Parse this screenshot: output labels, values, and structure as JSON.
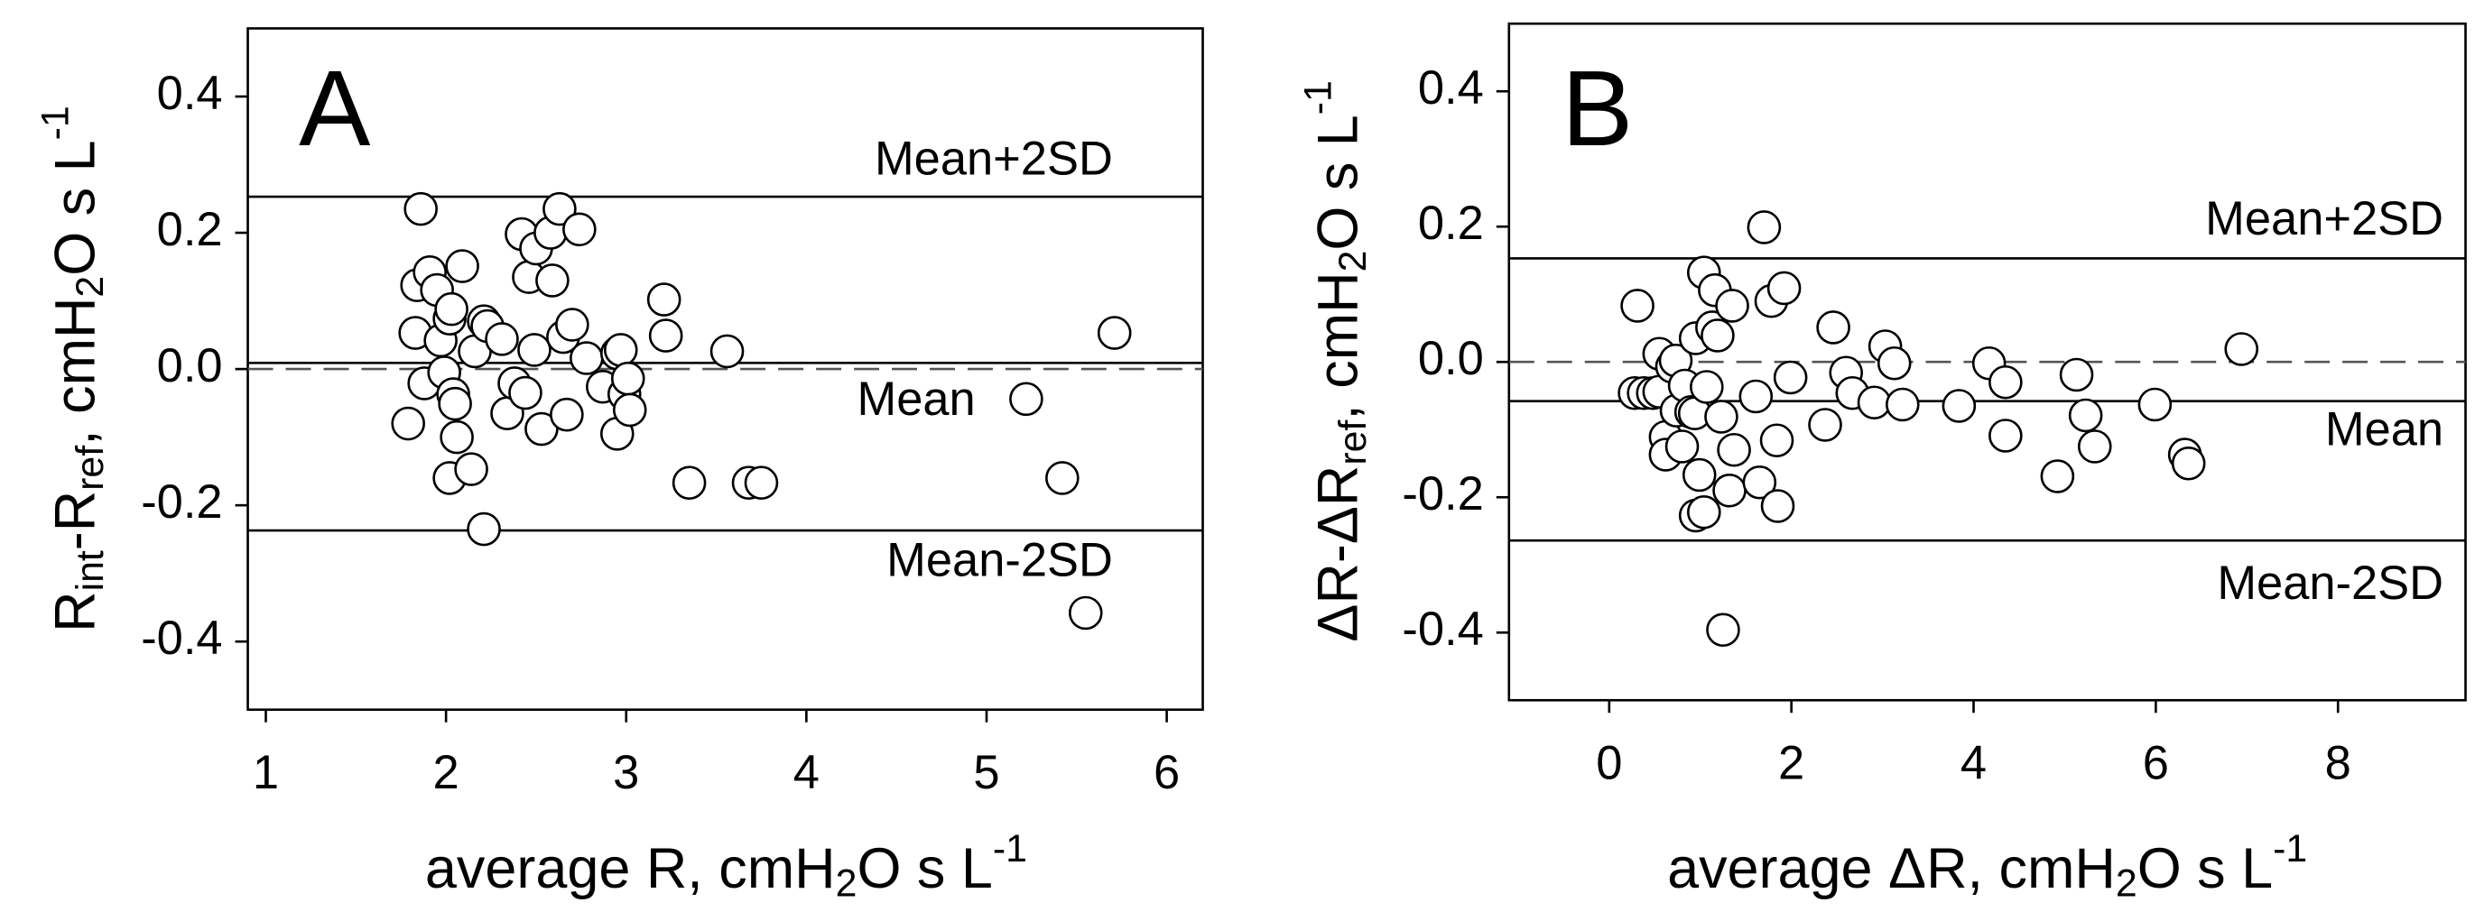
{
  "chart_data": [
    {
      "type": "scatter",
      "panel_label": "A",
      "x_label": [
        {
          "text": "average R, cmH"
        },
        {
          "sub": "2"
        },
        {
          "text": "O s L"
        },
        {
          "sup": "-1"
        }
      ],
      "y_label": [
        {
          "text": "R"
        },
        {
          "sub": "int"
        },
        {
          "text": "-R"
        },
        {
          "sub": "ref"
        },
        {
          "text": ", cmH"
        },
        {
          "sub": "2"
        },
        {
          "text": "O s L"
        },
        {
          "sup": "-1"
        }
      ],
      "x": [
        1.86,
        1.79,
        1.83,
        1.84,
        1.88,
        1.91,
        1.95,
        1.97,
        1.99,
        2.02,
        2.03,
        2.04,
        2.05,
        2.02,
        2.06,
        2.09,
        2.14,
        2.16,
        2.21,
        2.23,
        2.21,
        2.31,
        2.34,
        2.38,
        2.42,
        2.44,
        2.46,
        2.49,
        2.5,
        2.53,
        2.58,
        2.59,
        2.63,
        2.65,
        2.67,
        2.7,
        2.74,
        2.78,
        2.87,
        2.95,
        2.97,
        2.95,
        2.99,
        3.01,
        3.02,
        3.21,
        3.22,
        3.35,
        3.56,
        3.68,
        3.75,
        5.22,
        5.42,
        5.55,
        5.71
      ],
      "y": [
        0.235,
        -0.08,
        0.053,
        0.123,
        -0.021,
        0.142,
        0.116,
        0.042,
        -0.005,
        0.074,
        0.088,
        -0.037,
        -0.051,
        -0.16,
        -0.1,
        0.151,
        -0.147,
        0.026,
        0.07,
        0.063,
        -0.235,
        0.044,
        -0.065,
        -0.021,
        0.198,
        -0.035,
        0.135,
        0.028,
        0.177,
        -0.088,
        0.2,
        0.13,
        0.235,
        0.047,
        -0.067,
        0.065,
        0.205,
        0.016,
        -0.026,
        0.023,
        0.028,
        -0.095,
        -0.037,
        -0.014,
        -0.06,
        0.102,
        0.049,
        -0.167,
        0.026,
        -0.167,
        -0.167,
        -0.044,
        -0.16,
        -0.358,
        0.053
      ],
      "reference_lines": [
        {
          "label": "Mean+2SD",
          "value": 0.253
        },
        {
          "label": "Mean",
          "value": 0.009
        },
        {
          "value": 0,
          "dashed": true
        },
        {
          "label": "Mean-2SD",
          "value": -0.237
        }
      ],
      "xlim": [
        0.9,
        6.2
      ],
      "ylim": [
        -0.5,
        0.5
      ],
      "xticks": [
        1,
        2,
        3,
        4,
        5,
        6
      ],
      "yticks": [
        -0.4,
        -0.2,
        {
          "value": 0,
          "label": "0.0"
        },
        0.2,
        0.4
      ],
      "marker_fill": "#ffffff",
      "marker_edge": "#000000"
    },
    {
      "type": "scatter",
      "panel_label": "B",
      "x_label": [
        {
          "text": "average ΔR, cmH"
        },
        {
          "sub": "2"
        },
        {
          "text": "O s L"
        },
        {
          "sup": "-1"
        }
      ],
      "y_label": [
        {
          "text": "ΔR-ΔR"
        },
        {
          "sub": "ref"
        },
        {
          "text": ", cmH"
        },
        {
          "sub": "2"
        },
        {
          "text": "O s L"
        },
        {
          "sup": "-1"
        }
      ],
      "x": [
        0.31,
        0.28,
        0.38,
        0.48,
        0.55,
        0.55,
        0.62,
        0.62,
        0.69,
        0.73,
        0.74,
        0.8,
        0.83,
        0.9,
        0.94,
        0.95,
        0.99,
        0.95,
        1.04,
        1.04,
        1.07,
        1.13,
        1.16,
        1.19,
        1.23,
        1.25,
        1.32,
        1.35,
        1.37,
        1.61,
        1.65,
        1.7,
        1.78,
        1.84,
        1.85,
        1.92,
        1.99,
        2.37,
        2.46,
        2.6,
        2.67,
        2.91,
        3.03,
        3.13,
        3.22,
        3.84,
        4.17,
        4.35,
        4.35,
        4.92,
        5.13,
        5.23,
        5.33,
        5.99,
        6.32,
        6.36,
        6.94
      ],
      "y": [
        0.083,
        -0.046,
        -0.046,
        -0.046,
        0.012,
        -0.044,
        -0.111,
        -0.137,
        -0.007,
        0.002,
        -0.072,
        -0.125,
        -0.035,
        -0.074,
        -0.076,
        0.035,
        -0.167,
        -0.227,
        -0.222,
        0.132,
        -0.037,
        0.051,
        0.106,
        0.039,
        -0.081,
        -0.396,
        -0.19,
        0.083,
        -0.13,
        -0.051,
        -0.178,
        0.199,
        0.09,
        -0.116,
        -0.213,
        0.109,
        -0.023,
        -0.093,
        0.051,
        -0.016,
        -0.046,
        -0.06,
        0.023,
        -0.002,
        -0.063,
        -0.065,
        -0.002,
        -0.03,
        -0.109,
        -0.169,
        -0.019,
        -0.079,
        -0.125,
        -0.063,
        -0.137,
        -0.15,
        0.019
      ],
      "reference_lines": [
        {
          "label": "Mean+2SD",
          "value": 0.153
        },
        {
          "value": 0,
          "dashed": true
        },
        {
          "label": "Mean",
          "value": -0.058
        },
        {
          "label": "Mean-2SD",
          "value": -0.264
        }
      ],
      "xlim": [
        -1.1,
        9.4
      ],
      "ylim": [
        -0.5,
        0.5
      ],
      "xticks": [
        0,
        2,
        4,
        6,
        8
      ],
      "yticks": [
        -0.4,
        -0.2,
        {
          "value": 0,
          "label": "0.0"
        },
        0.2,
        0.4
      ],
      "marker_fill": "#ffffff",
      "marker_edge": "#000000"
    }
  ]
}
